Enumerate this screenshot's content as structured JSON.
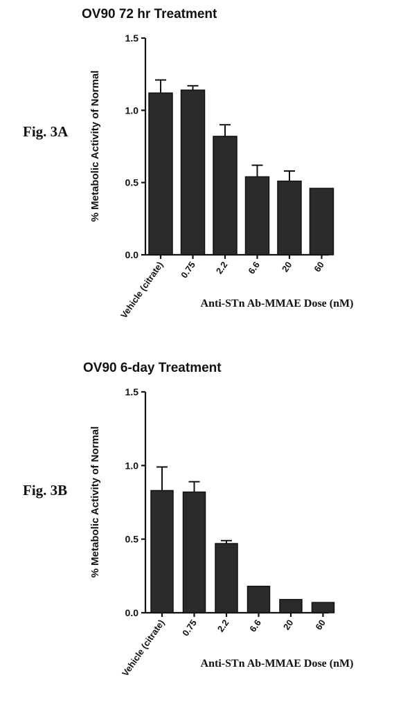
{
  "chart_data": [
    {
      "type": "bar",
      "figure_label": "Fig. 3A",
      "title": "OV90 72 hr Treatment",
      "xlabel": "Anti-STn Ab-MMAE Dose (nM)",
      "ylabel": "% Metabolic Activity of Normal",
      "ylim": [
        0,
        1.5
      ],
      "yticks": [
        "0.0",
        "0.5",
        "1.0",
        "1.5"
      ],
      "categories": [
        "Vehicle (citrate)",
        "0.75",
        "2.2",
        "6.6",
        "20",
        "60"
      ],
      "values": [
        1.12,
        1.14,
        0.82,
        0.54,
        0.51,
        0.46
      ],
      "errors": [
        0.09,
        0.03,
        0.08,
        0.08,
        0.07,
        0.0
      ],
      "bar_color": "#2b2b2b",
      "grid": false
    },
    {
      "type": "bar",
      "figure_label": "Fig. 3B",
      "title": "OV90 6-day Treatment",
      "xlabel": "Anti-STn Ab-MMAE Dose (nM)",
      "ylabel": "% Metabolic Activity of Normal",
      "ylim": [
        0,
        1.5
      ],
      "yticks": [
        "0.0",
        "0.5",
        "1.0",
        "1.5"
      ],
      "categories": [
        "Vehicle (citrate)",
        "0.75",
        "2.2",
        "6.6",
        "20",
        "60"
      ],
      "values": [
        0.83,
        0.82,
        0.47,
        0.18,
        0.09,
        0.07
      ],
      "errors": [
        0.16,
        0.07,
        0.02,
        0.0,
        0.0,
        0.0
      ],
      "bar_color": "#2b2b2b",
      "grid": false
    }
  ]
}
